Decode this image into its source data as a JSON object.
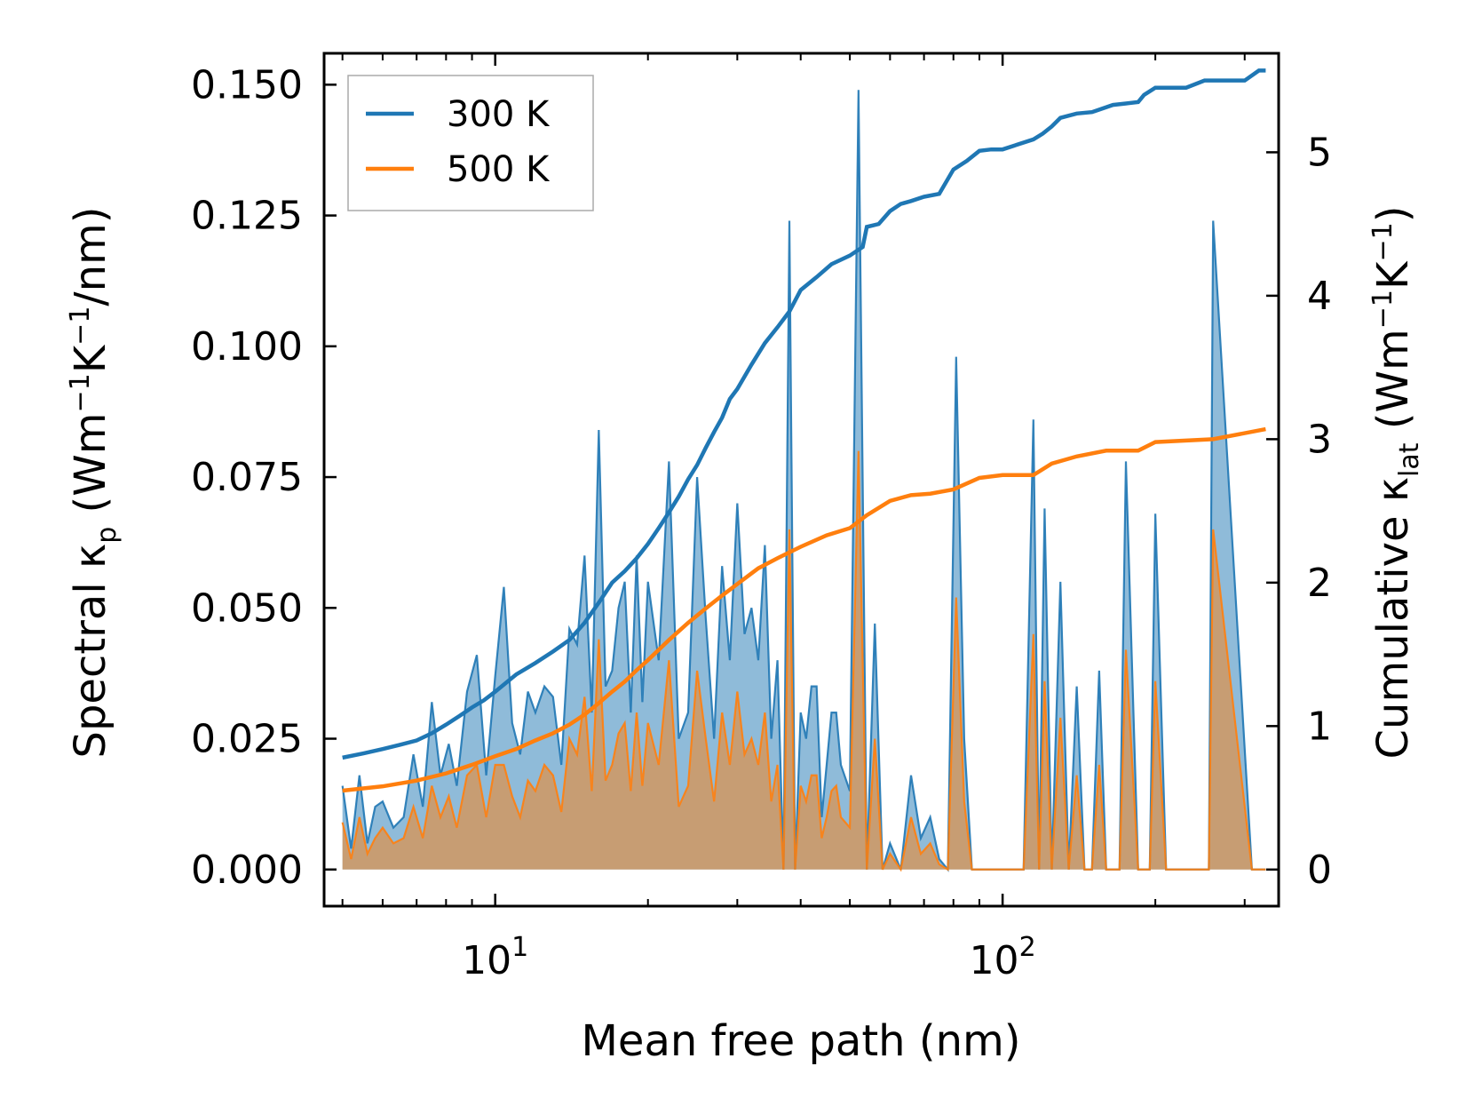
{
  "chart_data": {
    "type": "line",
    "title": "",
    "xlabel": "Mean free path (nm)",
    "xscale": "log",
    "xlim": [
      4.6,
      350
    ],
    "y_left": {
      "label_main": "Spectral κ",
      "label_sub": "p",
      "label_units_pre": "(Wm",
      "label_sup1": "−1",
      "label_units_mid": "K",
      "label_sup2": "−1",
      "label_units_post": "/nm)",
      "ylim": [
        -0.007,
        0.156
      ],
      "ticks": [
        0.0,
        0.025,
        0.05,
        0.075,
        0.1,
        0.125,
        0.15
      ],
      "tick_labels": [
        "0.000",
        "0.025",
        "0.050",
        "0.075",
        "0.100",
        "0.125",
        "0.150"
      ]
    },
    "y_right": {
      "label_main": "Cumulative κ",
      "label_sub": "lat",
      "label_units_pre": "(Wm",
      "label_sup1": "−1",
      "label_units_mid": "K",
      "label_sup2": "−1",
      "label_units_post": ")",
      "ylim": [
        -0.255,
        5.69
      ],
      "ticks": [
        0,
        1,
        2,
        3,
        4,
        5
      ],
      "tick_labels": [
        "0",
        "1",
        "2",
        "3",
        "4",
        "5"
      ]
    },
    "x_ticks": [
      {
        "value": 10,
        "base": "10",
        "exp": "1"
      },
      {
        "value": 100,
        "base": "10",
        "exp": "2"
      }
    ],
    "x_minor_ticks": [
      5,
      6,
      7,
      8,
      9,
      20,
      30,
      40,
      50,
      60,
      70,
      80,
      90,
      200,
      300
    ],
    "legend": {
      "position": "top-left",
      "entries": [
        {
          "label": "300 K",
          "color": "#1f77b4"
        },
        {
          "label": "500 K",
          "color": "#ff7f0e"
        }
      ]
    },
    "colors": {
      "series_300": "#1f77b4",
      "series_500": "#ff7f0e",
      "fill_300": "#1f77b4",
      "fill_500": "#ff7f0e"
    },
    "spectral_300": {
      "x": [
        5.0,
        5.2,
        5.4,
        5.6,
        5.8,
        6.0,
        6.3,
        6.6,
        6.9,
        7.2,
        7.5,
        7.8,
        8.1,
        8.4,
        8.8,
        9.2,
        9.6,
        10.0,
        10.4,
        10.8,
        11.2,
        11.6,
        12.0,
        12.5,
        13.0,
        13.5,
        14.0,
        14.5,
        15.0,
        15.5,
        16.0,
        16.5,
        17.0,
        17.5,
        18.0,
        18.5,
        19.0,
        19.5,
        20.0,
        21.0,
        22.0,
        23.0,
        24.0,
        25.0,
        26.0,
        27.0,
        28.0,
        29.0,
        30.0,
        31.0,
        32.0,
        33.0,
        34.0,
        35.0,
        36.0,
        37.0,
        38.0,
        39.0,
        40.0,
        41.0,
        42.0,
        43.0,
        44.0,
        45.0,
        46.0,
        47.0,
        48.0,
        50.0,
        52.0,
        54.0,
        56.0,
        58.0,
        60.0,
        63.0,
        66.0,
        69.0,
        72.0,
        75.0,
        78.0,
        81.0,
        84.0,
        87.0,
        90.0,
        95.0,
        100.0,
        110.0,
        115.0,
        118.0,
        121.0,
        125.0,
        130.0,
        135.0,
        140.0,
        145.0,
        150.0,
        155.0,
        160.0,
        165.0,
        170.0,
        175.0,
        185.0,
        190.0,
        195.0,
        200.0,
        210.0,
        240.0,
        245.0,
        250.0,
        255.0,
        260.0,
        310.0,
        315.0,
        320.0,
        325.0,
        330.0
      ],
      "y": [
        0.016,
        0.004,
        0.018,
        0.005,
        0.012,
        0.013,
        0.008,
        0.01,
        0.022,
        0.012,
        0.032,
        0.018,
        0.024,
        0.016,
        0.034,
        0.041,
        0.018,
        0.037,
        0.054,
        0.028,
        0.022,
        0.034,
        0.03,
        0.035,
        0.033,
        0.02,
        0.046,
        0.043,
        0.06,
        0.03,
        0.084,
        0.035,
        0.038,
        0.05,
        0.055,
        0.03,
        0.06,
        0.032,
        0.055,
        0.04,
        0.078,
        0.025,
        0.03,
        0.075,
        0.048,
        0.025,
        0.058,
        0.04,
        0.07,
        0.045,
        0.05,
        0.04,
        0.062,
        0.025,
        0.04,
        0.0,
        0.124,
        0.0,
        0.03,
        0.025,
        0.035,
        0.035,
        0.01,
        0.02,
        0.03,
        0.03,
        0.02,
        0.015,
        0.149,
        0.0,
        0.047,
        0.0,
        0.005,
        0.0,
        0.018,
        0.006,
        0.01,
        0.002,
        0.0,
        0.098,
        0.025,
        0.0,
        0.0,
        0.0,
        0.0,
        0.0,
        0.086,
        0.0,
        0.069,
        0.0,
        0.055,
        0.0,
        0.035,
        0.0,
        0.0,
        0.038,
        0.0,
        0.0,
        0.0,
        0.078,
        0.0,
        0.0,
        0.0,
        0.068,
        0.0,
        0.0,
        0.0,
        0.0,
        0.0,
        0.124,
        0.0,
        0.0,
        0.0,
        0.0,
        0.0
      ]
    },
    "spectral_500": {
      "x": [
        5.0,
        5.2,
        5.4,
        5.6,
        5.8,
        6.0,
        6.3,
        6.6,
        6.9,
        7.2,
        7.5,
        7.8,
        8.1,
        8.4,
        8.8,
        9.2,
        9.6,
        10.0,
        10.4,
        10.8,
        11.2,
        11.6,
        12.0,
        12.5,
        13.0,
        13.5,
        14.0,
        14.5,
        15.0,
        15.5,
        16.0,
        16.5,
        17.0,
        17.5,
        18.0,
        18.5,
        19.0,
        19.5,
        20.0,
        21.0,
        22.0,
        23.0,
        24.0,
        25.0,
        26.0,
        27.0,
        28.0,
        29.0,
        30.0,
        31.0,
        32.0,
        33.0,
        34.0,
        35.0,
        36.0,
        37.0,
        38.0,
        39.0,
        40.0,
        41.0,
        42.0,
        43.0,
        44.0,
        45.0,
        46.0,
        47.0,
        48.0,
        50.0,
        52.0,
        54.0,
        56.0,
        58.0,
        60.0,
        63.0,
        66.0,
        69.0,
        72.0,
        75.0,
        78.0,
        81.0,
        84.0,
        87.0,
        90.0,
        95.0,
        100.0,
        110.0,
        115.0,
        118.0,
        121.0,
        125.0,
        130.0,
        135.0,
        140.0,
        145.0,
        150.0,
        155.0,
        160.0,
        165.0,
        170.0,
        175.0,
        185.0,
        190.0,
        195.0,
        200.0,
        210.0,
        240.0,
        245.0,
        250.0,
        255.0,
        260.0,
        310.0,
        315.0,
        320.0,
        325.0,
        330.0
      ],
      "y": [
        0.009,
        0.002,
        0.01,
        0.003,
        0.006,
        0.008,
        0.005,
        0.006,
        0.012,
        0.006,
        0.016,
        0.01,
        0.014,
        0.008,
        0.018,
        0.02,
        0.01,
        0.02,
        0.02,
        0.014,
        0.01,
        0.017,
        0.015,
        0.02,
        0.018,
        0.011,
        0.025,
        0.022,
        0.033,
        0.015,
        0.044,
        0.017,
        0.02,
        0.026,
        0.028,
        0.015,
        0.03,
        0.016,
        0.028,
        0.02,
        0.04,
        0.012,
        0.016,
        0.038,
        0.025,
        0.013,
        0.03,
        0.02,
        0.034,
        0.022,
        0.025,
        0.02,
        0.03,
        0.013,
        0.02,
        0.0,
        0.065,
        0.0,
        0.016,
        0.013,
        0.018,
        0.018,
        0.006,
        0.01,
        0.015,
        0.016,
        0.01,
        0.008,
        0.08,
        0.0,
        0.025,
        0.0,
        0.003,
        0.0,
        0.01,
        0.003,
        0.005,
        0.001,
        0.0,
        0.052,
        0.013,
        0.0,
        0.0,
        0.0,
        0.0,
        0.0,
        0.045,
        0.0,
        0.036,
        0.0,
        0.029,
        0.0,
        0.018,
        0.0,
        0.0,
        0.02,
        0.0,
        0.0,
        0.0,
        0.042,
        0.0,
        0.0,
        0.0,
        0.036,
        0.0,
        0.0,
        0.0,
        0.0,
        0.0,
        0.065,
        0.0,
        0.0,
        0.0,
        0.0,
        0.0
      ]
    },
    "cumulative_300": {
      "x": [
        5.0,
        5.5,
        6.0,
        6.5,
        7.0,
        7.5,
        8.0,
        8.5,
        9.0,
        9.5,
        10.0,
        11.0,
        12.0,
        13.0,
        14.0,
        15.0,
        16.0,
        17.0,
        18.0,
        19.0,
        20.0,
        21.0,
        22.0,
        23.0,
        24.0,
        25.0,
        26.0,
        27.0,
        28.0,
        29.0,
        30.0,
        32.0,
        34.0,
        36.0,
        38.0,
        40.0,
        43.0,
        46.0,
        50.0,
        53.0,
        54.0,
        57.0,
        60.0,
        63.0,
        66.0,
        70.0,
        75.0,
        80.0,
        85.0,
        90.0,
        95.0,
        100.0,
        115.0,
        120.0,
        125.0,
        130.0,
        140.0,
        150.0,
        165.0,
        175.0,
        185.0,
        190.0,
        200.0,
        230.0,
        250.0,
        260.0,
        300.0,
        320.0,
        325.0,
        330.0
      ],
      "y": [
        0.78,
        0.81,
        0.84,
        0.87,
        0.9,
        0.95,
        1.01,
        1.07,
        1.13,
        1.18,
        1.24,
        1.36,
        1.44,
        1.52,
        1.6,
        1.72,
        1.86,
        2.0,
        2.08,
        2.17,
        2.27,
        2.38,
        2.49,
        2.6,
        2.72,
        2.82,
        2.94,
        3.05,
        3.15,
        3.28,
        3.35,
        3.52,
        3.67,
        3.78,
        3.89,
        4.04,
        4.13,
        4.22,
        4.28,
        4.34,
        4.48,
        4.5,
        4.59,
        4.64,
        4.66,
        4.69,
        4.71,
        4.88,
        4.94,
        5.01,
        5.02,
        5.02,
        5.09,
        5.13,
        5.18,
        5.24,
        5.27,
        5.28,
        5.33,
        5.34,
        5.35,
        5.4,
        5.45,
        5.45,
        5.5,
        5.5,
        5.5,
        5.57,
        5.57,
        5.57
      ]
    },
    "cumulative_500": {
      "x": [
        5.0,
        6.0,
        7.0,
        8.0,
        9.0,
        10.0,
        11.0,
        12.0,
        13.0,
        14.0,
        15.0,
        16.0,
        17.0,
        18.0,
        19.0,
        20.0,
        22.0,
        24.0,
        26.0,
        28.0,
        30.0,
        33.0,
        36.0,
        40.0,
        45.0,
        50.0,
        54.0,
        60.0,
        66.0,
        72.0,
        80.0,
        90.0,
        100.0,
        115.0,
        125.0,
        140.0,
        160.0,
        185.0,
        200.0,
        260.0,
        330.0
      ],
      "y": [
        0.55,
        0.58,
        0.62,
        0.67,
        0.73,
        0.79,
        0.84,
        0.9,
        0.95,
        1.01,
        1.08,
        1.16,
        1.24,
        1.31,
        1.39,
        1.46,
        1.6,
        1.72,
        1.82,
        1.91,
        1.99,
        2.1,
        2.17,
        2.25,
        2.33,
        2.38,
        2.47,
        2.57,
        2.61,
        2.62,
        2.65,
        2.73,
        2.75,
        2.75,
        2.83,
        2.88,
        2.92,
        2.92,
        2.98,
        3.0,
        3.07
      ]
    }
  }
}
